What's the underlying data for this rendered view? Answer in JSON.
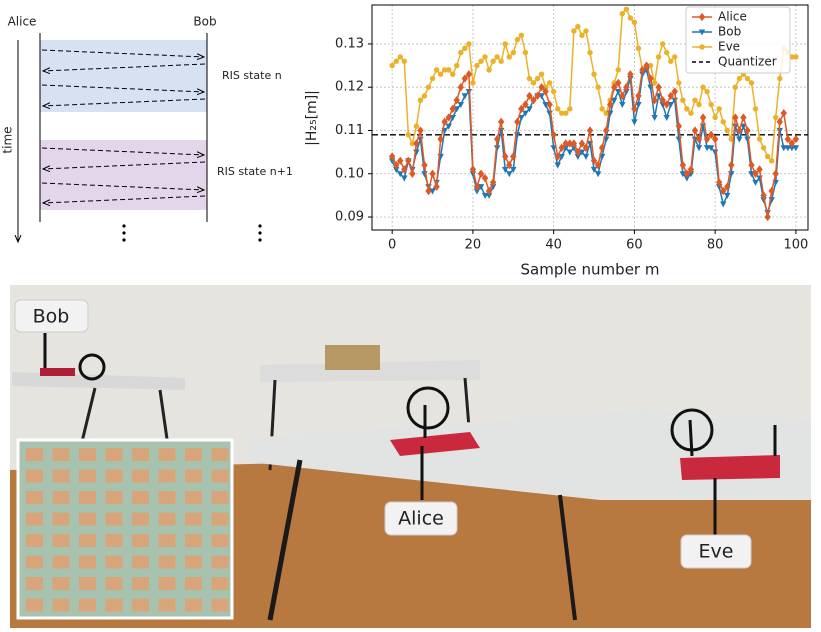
{
  "diagram": {
    "left_label": "Alice",
    "right_label": "Bob",
    "time_label": "time",
    "states": [
      "RIS state n",
      "RIS state n+1"
    ]
  },
  "chart_data": {
    "type": "line",
    "ylabel": "|H₂₅[m]|",
    "xlabel": "Sample number m",
    "grid": true,
    "legend": "upper right",
    "x": [
      0,
      1,
      2,
      3,
      4,
      5,
      6,
      7,
      8,
      9,
      10,
      11,
      12,
      13,
      14,
      15,
      16,
      17,
      18,
      19,
      20,
      21,
      22,
      23,
      24,
      25,
      26,
      27,
      28,
      29,
      30,
      31,
      32,
      33,
      34,
      35,
      36,
      37,
      38,
      39,
      40,
      41,
      42,
      43,
      44,
      45,
      46,
      47,
      48,
      49,
      50,
      51,
      52,
      53,
      54,
      55,
      56,
      57,
      58,
      59,
      60,
      61,
      62,
      63,
      64,
      65,
      66,
      67,
      68,
      69,
      70,
      71,
      72,
      73,
      74,
      75,
      76,
      77,
      78,
      79,
      80,
      81,
      82,
      83,
      84,
      85,
      86,
      87,
      88,
      89,
      90,
      91,
      92,
      93,
      94,
      95,
      96,
      97,
      98,
      99,
      100
    ],
    "xlim": [
      -5,
      103
    ],
    "xticks": [
      0,
      20,
      40,
      60,
      80,
      100
    ],
    "ylim": [
      0.087,
      0.139
    ],
    "yticks": [
      0.09,
      {
        "value": 0.1,
        "label": "0.10"
      },
      0.11,
      0.12,
      0.13
    ],
    "series": [
      {
        "name": "Alice",
        "color": "#dd5a27",
        "marker": "diamond",
        "values": [
          0.104,
          0.102,
          0.103,
          0.101,
          0.103,
          0.1,
          0.107,
          0.11,
          0.102,
          0.096,
          0.1,
          0.097,
          0.108,
          0.112,
          0.113,
          0.115,
          0.117,
          0.12,
          0.122,
          0.123,
          0.101,
          0.097,
          0.1,
          0.099,
          0.096,
          0.098,
          0.108,
          0.112,
          0.104,
          0.102,
          0.104,
          0.112,
          0.115,
          0.116,
          0.118,
          0.117,
          0.118,
          0.12,
          0.119,
          0.116,
          0.109,
          0.104,
          0.106,
          0.107,
          0.107,
          0.107,
          0.105,
          0.107,
          0.106,
          0.11,
          0.103,
          0.102,
          0.106,
          0.11,
          0.116,
          0.12,
          0.121,
          0.118,
          0.12,
          0.123,
          0.115,
          0.118,
          0.124,
          0.125,
          0.122,
          0.117,
          0.12,
          0.117,
          0.116,
          0.118,
          0.119,
          0.111,
          0.102,
          0.1,
          0.101,
          0.11,
          0.108,
          0.113,
          0.108,
          0.109,
          0.108,
          0.098,
          0.096,
          0.097,
          0.102,
          0.113,
          0.11,
          0.113,
          0.11,
          0.102,
          0.1,
          0.101,
          0.095,
          0.09,
          0.096,
          0.1,
          0.112,
          0.114,
          0.108,
          0.107,
          0.108
        ]
      },
      {
        "name": "Bob",
        "color": "#1f77b4",
        "marker": "triangle-down",
        "values": [
          0.103,
          0.101,
          0.1,
          0.099,
          0.103,
          0.101,
          0.105,
          0.108,
          0.1,
          0.097,
          0.096,
          0.098,
          0.104,
          0.11,
          0.111,
          0.113,
          0.115,
          0.116,
          0.118,
          0.119,
          0.1,
          0.096,
          0.097,
          0.095,
          0.095,
          0.097,
          0.106,
          0.11,
          0.101,
          0.1,
          0.101,
          0.109,
          0.113,
          0.114,
          0.115,
          0.117,
          0.118,
          0.118,
          0.116,
          0.114,
          0.106,
          0.102,
          0.104,
          0.106,
          0.105,
          0.106,
          0.104,
          0.105,
          0.104,
          0.107,
          0.101,
          0.1,
          0.104,
          0.108,
          0.114,
          0.117,
          0.119,
          0.116,
          0.119,
          0.122,
          0.112,
          0.116,
          0.123,
          0.124,
          0.12,
          0.113,
          0.118,
          0.116,
          0.113,
          0.116,
          0.117,
          0.108,
          0.1,
          0.099,
          0.1,
          0.108,
          0.106,
          0.111,
          0.106,
          0.106,
          0.105,
          0.097,
          0.093,
          0.095,
          0.1,
          0.111,
          0.108,
          0.111,
          0.108,
          0.1,
          0.098,
          0.099,
          0.094,
          0.091,
          0.094,
          0.098,
          0.11,
          0.106,
          0.106,
          0.106,
          0.106
        ]
      },
      {
        "name": "Eve",
        "color": "#ebb12b",
        "marker": "circle",
        "values": [
          0.125,
          0.126,
          0.127,
          0.126,
          0.109,
          0.107,
          0.111,
          0.117,
          0.118,
          0.12,
          0.122,
          0.124,
          0.123,
          0.124,
          0.124,
          0.123,
          0.125,
          0.128,
          0.129,
          0.13,
          0.121,
          0.125,
          0.126,
          0.127,
          0.124,
          0.126,
          0.127,
          0.126,
          0.13,
          0.127,
          0.128,
          0.131,
          0.132,
          0.128,
          0.122,
          0.121,
          0.122,
          0.123,
          0.12,
          0.121,
          0.119,
          0.115,
          0.114,
          0.114,
          0.115,
          0.133,
          0.134,
          0.132,
          0.133,
          0.128,
          0.123,
          0.12,
          0.115,
          0.114,
          0.117,
          0.121,
          0.124,
          0.137,
          0.138,
          0.136,
          0.135,
          0.129,
          0.124,
          0.124,
          0.125,
          0.121,
          0.127,
          0.13,
          0.128,
          0.126,
          0.127,
          0.121,
          0.117,
          0.115,
          0.114,
          0.117,
          0.116,
          0.12,
          0.119,
          0.116,
          0.113,
          0.115,
          0.112,
          0.11,
          0.108,
          0.12,
          0.122,
          0.123,
          0.122,
          0.121,
          0.115,
          0.108,
          0.106,
          0.104,
          0.103,
          0.113,
          0.122,
          0.129,
          0.128,
          0.127,
          0.127
        ]
      }
    ],
    "reference_lines": [
      {
        "name": "Quantizer",
        "value": 0.109,
        "color": "#000000"
      }
    ]
  },
  "photo": {
    "labels": [
      "Bob",
      "Alice",
      "Eve"
    ]
  }
}
